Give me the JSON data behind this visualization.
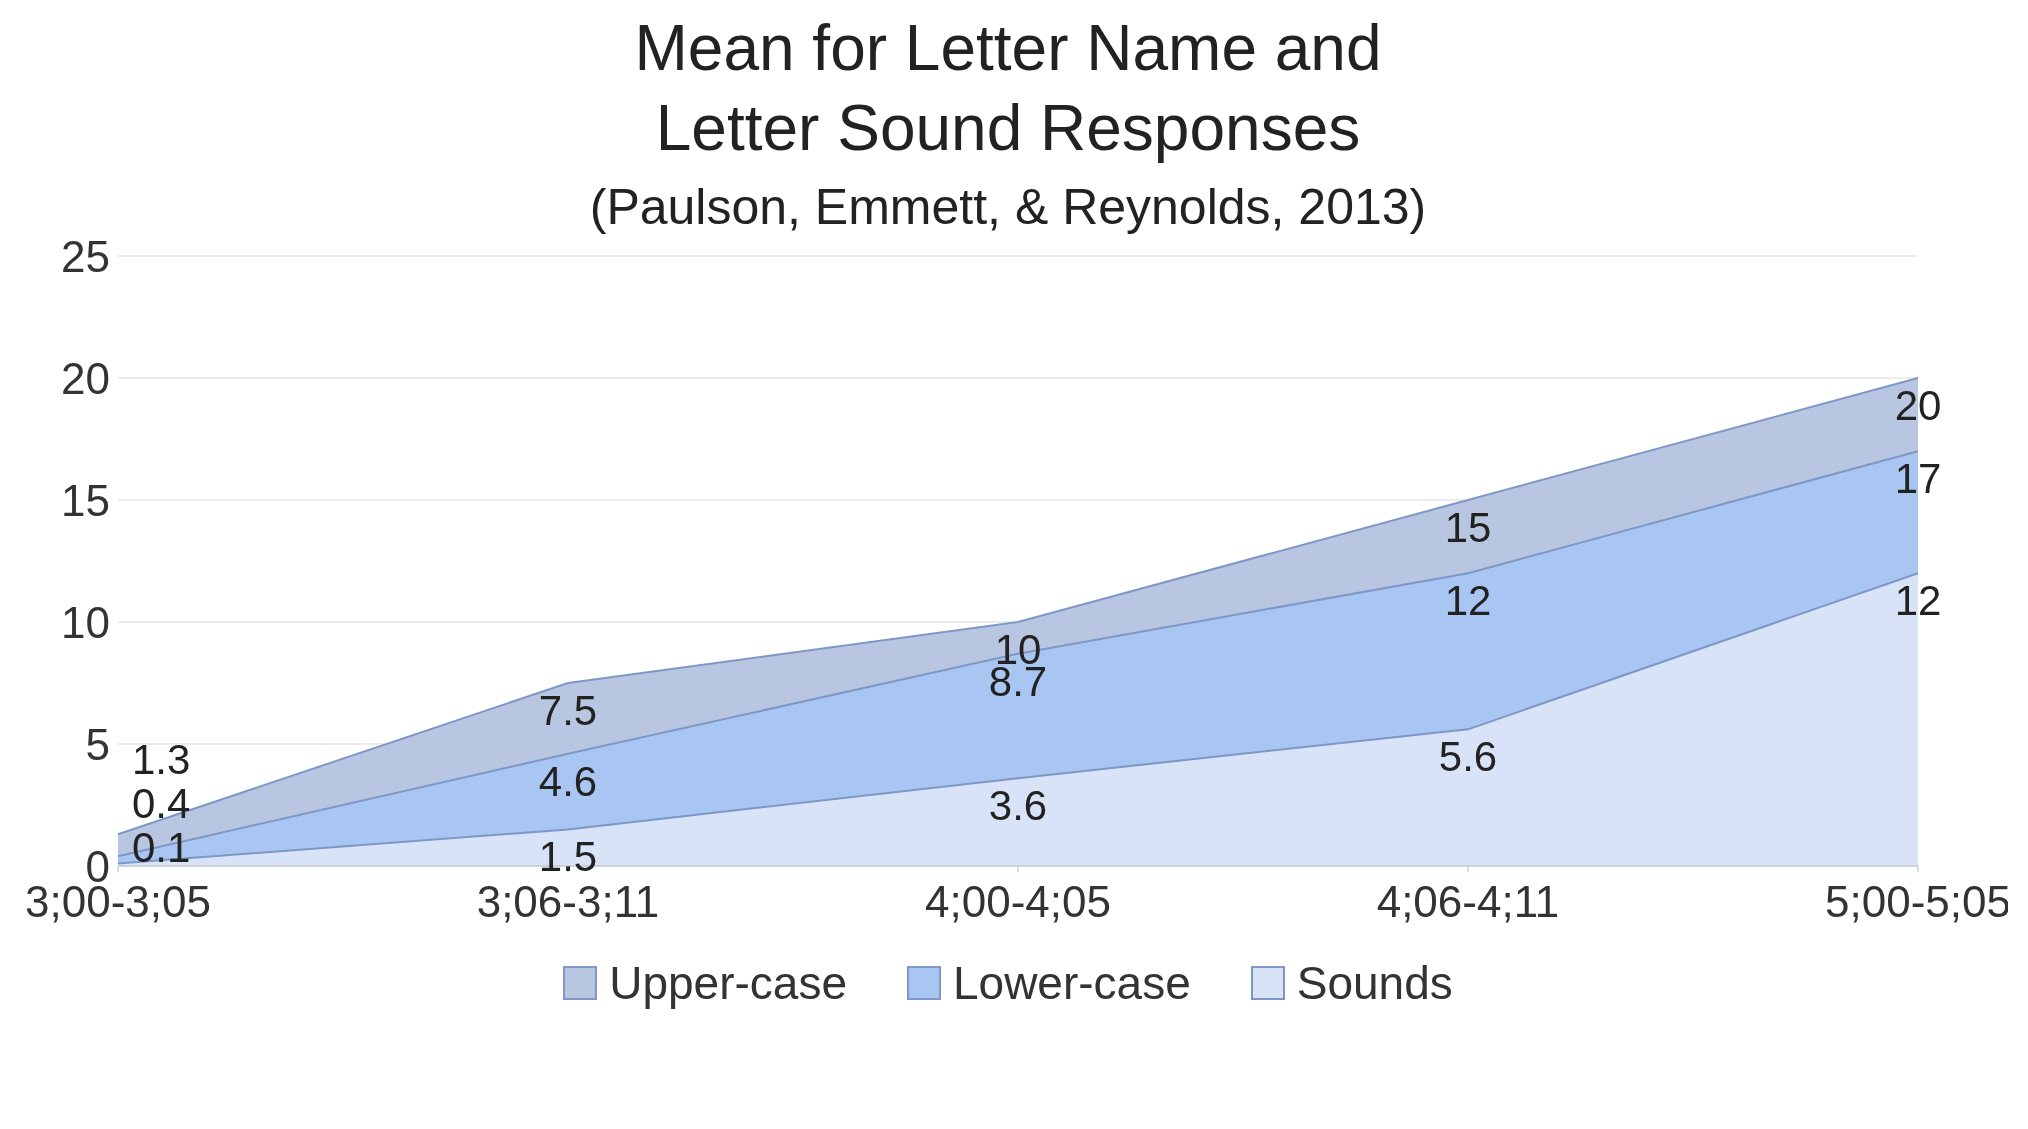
{
  "chart_data": {
    "type": "area",
    "title": "Mean for Letter Name and Letter Sound Responses",
    "subtitle": "(Paulson, Emmett, & Reynolds, 2013)",
    "categories": [
      "3;00-3;05",
      "3;06-3;11",
      "4;00-4;05",
      "4;06-4;11",
      "5;00-5;05"
    ],
    "series": [
      {
        "name": "Upper-case",
        "color": "#b9c6e2",
        "values": [
          1.3,
          7.5,
          10,
          15,
          20
        ]
      },
      {
        "name": "Lower-case",
        "color": "#a9c5f2",
        "values": [
          0.4,
          4.6,
          8.7,
          12,
          17
        ]
      },
      {
        "name": "Sounds",
        "color": "#d8e3f8",
        "values": [
          0.1,
          1.5,
          3.6,
          5.6,
          12
        ]
      }
    ],
    "ylim": [
      0,
      25
    ],
    "yticks": [
      0,
      5,
      10,
      15,
      20,
      25
    ],
    "grid": "y",
    "legend": "bottom",
    "data_labels": true
  }
}
